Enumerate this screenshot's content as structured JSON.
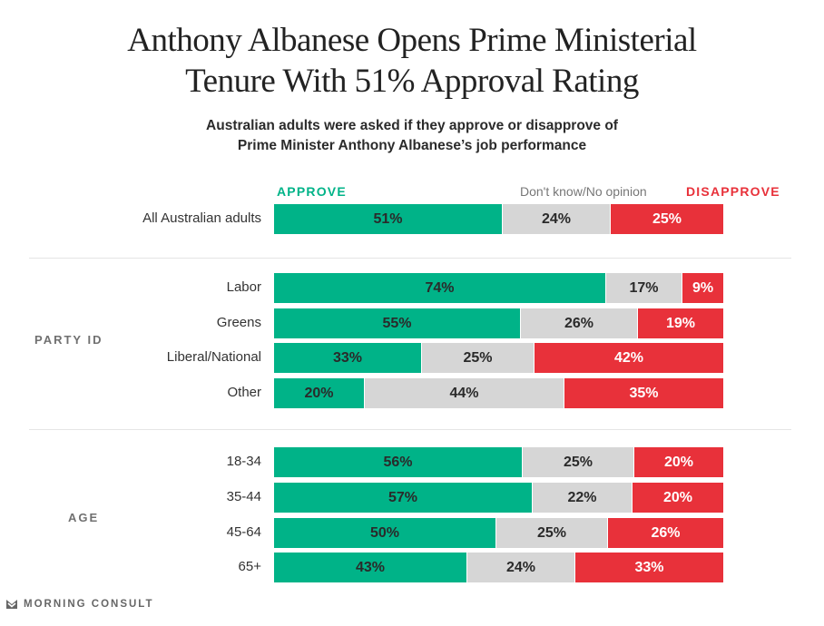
{
  "title_line1": "Anthony Albanese Opens Prime Ministerial",
  "title_line2": "Tenure With 51% Approval Rating",
  "subtitle_line1": "Australian adults were asked if they approve or disapprove of",
  "subtitle_line2": "Prime Minister Anthony Albanese’s job performance",
  "brand": "MORNING CONSULT",
  "colors": {
    "approve": "#00b388",
    "dont_know": "#d6d6d6",
    "disapprove": "#e8313a"
  },
  "chart_data": {
    "type": "bar",
    "orientation": "horizontal-stacked-100",
    "title": "Anthony Albanese Opens Prime Ministerial Tenure With 51% Approval Rating",
    "subtitle": "Australian adults were asked if they approve or disapprove of Prime Minister Anthony Albanese’s job performance",
    "legend": [
      "APPROVE",
      "Don't know/No opinion",
      "DISAPPROVE"
    ],
    "legend_position": "top",
    "series_names": [
      "Approve",
      "Don't know/No opinion",
      "Disapprove"
    ],
    "groups": [
      {
        "name": "",
        "rows": [
          {
            "label": "All Australian adults",
            "values": [
              51,
              24,
              25
            ]
          }
        ]
      },
      {
        "name": "PARTY ID",
        "rows": [
          {
            "label": "Labor",
            "values": [
              74,
              17,
              9
            ]
          },
          {
            "label": "Greens",
            "values": [
              55,
              26,
              19
            ]
          },
          {
            "label": "Liberal/National",
            "values": [
              33,
              25,
              42
            ]
          },
          {
            "label": "Other",
            "values": [
              20,
              44,
              35
            ]
          }
        ]
      },
      {
        "name": "AGE",
        "rows": [
          {
            "label": "18-34",
            "values": [
              56,
              25,
              20
            ]
          },
          {
            "label": "35-44",
            "values": [
              57,
              22,
              20
            ]
          },
          {
            "label": "45-64",
            "values": [
              50,
              25,
              26
            ]
          },
          {
            "label": "65+",
            "values": [
              43,
              24,
              33
            ]
          }
        ]
      }
    ],
    "unit": "%"
  }
}
